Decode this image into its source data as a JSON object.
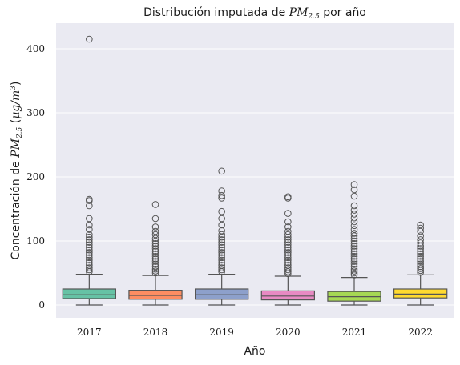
{
  "chart_data": {
    "type": "box",
    "title_prefix": "Distribución imputada de ",
    "title_math": "PM",
    "title_math_sub": "2.5",
    "title_suffix": " por año",
    "xlabel": "Año",
    "ylabel_prefix": "Concentración de ",
    "ylabel_math": "PM",
    "ylabel_math_sub": "2.5",
    "ylabel_unit_open": " (",
    "ylabel_unit": "μg/m",
    "ylabel_unit_sup": "3",
    "ylabel_unit_close": ")",
    "ylim": [
      -20,
      440
    ],
    "yticks": [
      0,
      100,
      200,
      300,
      400
    ],
    "grid": true,
    "categories": [
      "2017",
      "2018",
      "2019",
      "2020",
      "2021",
      "2022"
    ],
    "colors": [
      "#66c2a5",
      "#fc8d62",
      "#8da0cb",
      "#e78ac3",
      "#a6d854",
      "#ffd92f"
    ],
    "boxes": [
      {
        "min": 0,
        "q1": 10,
        "median": 16,
        "q3": 25,
        "max": 48,
        "outliers": [
          52,
          55,
          58,
          62,
          66,
          70,
          74,
          78,
          82,
          86,
          90,
          94,
          98,
          102,
          106,
          110,
          118,
          125,
          135,
          155,
          163,
          165,
          415
        ]
      },
      {
        "min": 0,
        "q1": 9,
        "median": 15,
        "q3": 23,
        "max": 46,
        "outliers": [
          50,
          53,
          56,
          60,
          64,
          68,
          72,
          76,
          80,
          84,
          88,
          92,
          96,
          100,
          104,
          110,
          115,
          122,
          135,
          157
        ]
      },
      {
        "min": 0,
        "q1": 9,
        "median": 16,
        "q3": 25,
        "max": 48,
        "outliers": [
          52,
          55,
          58,
          62,
          66,
          70,
          74,
          78,
          82,
          86,
          90,
          94,
          98,
          102,
          106,
          110,
          116,
          125,
          135,
          146,
          167,
          171,
          178,
          209
        ]
      },
      {
        "min": 0,
        "q1": 8,
        "median": 14,
        "q3": 22,
        "max": 45,
        "outliers": [
          49,
          52,
          55,
          58,
          62,
          66,
          70,
          74,
          78,
          82,
          86,
          90,
          94,
          98,
          102,
          106,
          110,
          115,
          122,
          130,
          143,
          167,
          169
        ]
      },
      {
        "min": 0,
        "q1": 6,
        "median": 13,
        "q3": 21,
        "max": 43,
        "outliers": [
          47,
          50,
          53,
          56,
          60,
          64,
          68,
          72,
          76,
          80,
          84,
          88,
          92,
          96,
          100,
          104,
          108,
          112,
          118,
          124,
          130,
          136,
          142,
          148,
          155,
          170,
          180,
          188
        ]
      },
      {
        "min": 0,
        "q1": 11,
        "median": 17,
        "q3": 25,
        "max": 47,
        "outliers": [
          51,
          54,
          57,
          60,
          64,
          68,
          72,
          76,
          80,
          84,
          88,
          92,
          97,
          102,
          108,
          115,
          120,
          125
        ]
      }
    ]
  }
}
